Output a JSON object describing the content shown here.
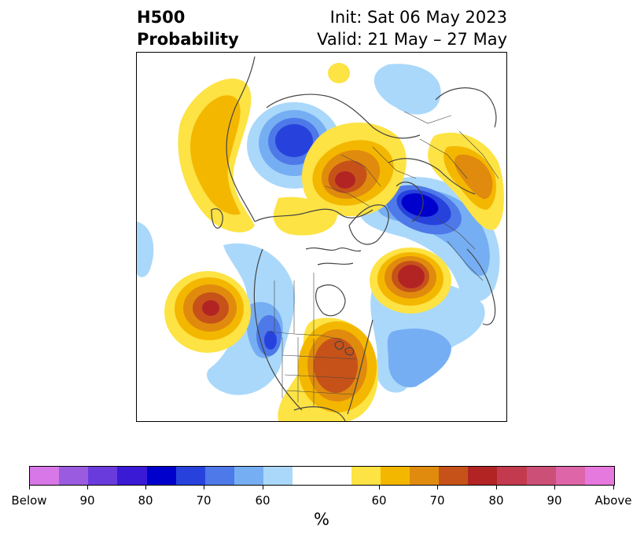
{
  "header": {
    "title_line1": "H500",
    "title_line2": "Probability",
    "init_text": "Init: Sat 06 May 2023",
    "valid_text": "Valid: 21 May – 27 May"
  },
  "colorbar": {
    "unit": "%",
    "colors_below": [
      "#d877e8",
      "#9a5be0",
      "#6a3bdc",
      "#3b1ad6",
      "#0000cc",
      "#2742dc",
      "#4e79e8",
      "#76aef3",
      "#aad8fa"
    ],
    "color_neutral": "#ffffff",
    "colors_above": [
      "#fde343",
      "#f4b700",
      "#e08b0d",
      "#c65219",
      "#b22424",
      "#c33a4e",
      "#cc4f78",
      "#dd65a8",
      "#e679dd"
    ],
    "tick_labels": [
      "Below",
      "90",
      "80",
      "70",
      "60",
      "60",
      "70",
      "80",
      "90",
      "Above"
    ]
  },
  "map": {
    "projection": "north-polar stereographic",
    "features": "H500 probability anomalies with coastlines and political boundaries",
    "land_color": "#ffffff",
    "border_color": "#444444"
  }
}
